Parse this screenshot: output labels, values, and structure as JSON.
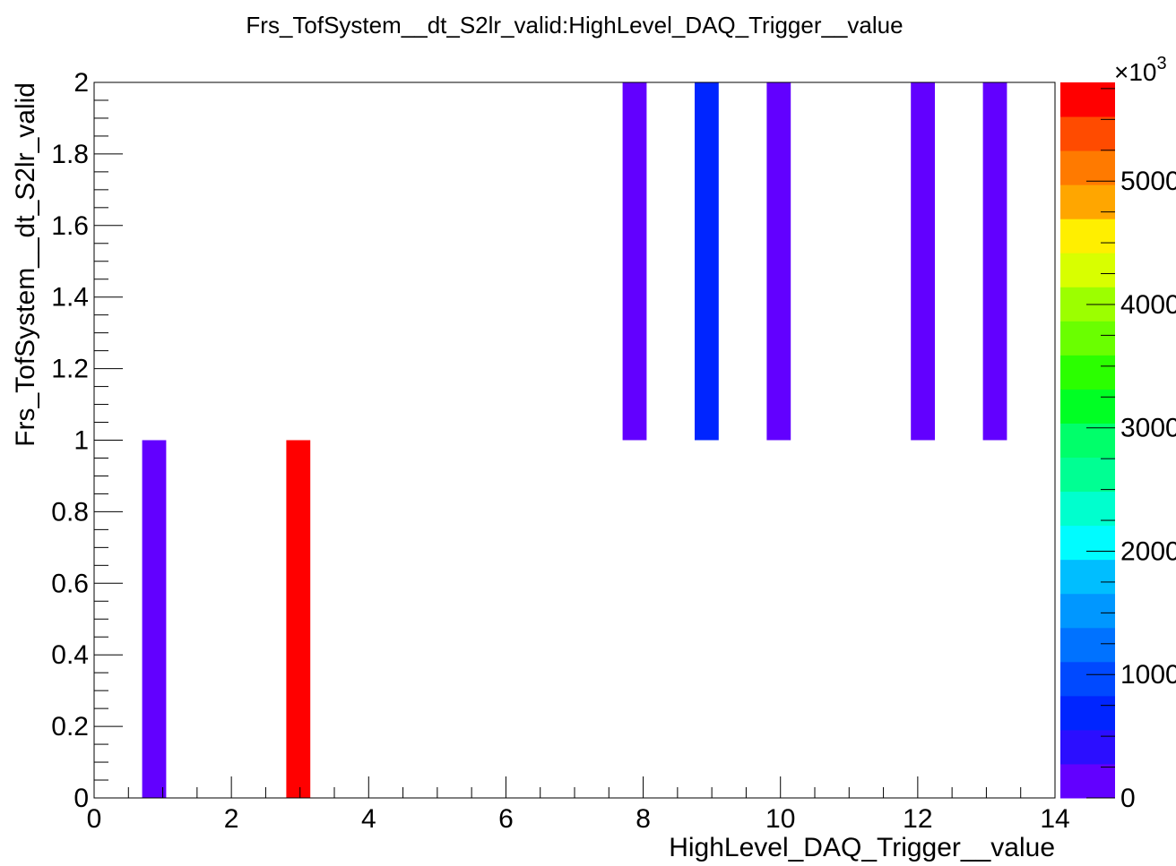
{
  "chart_data": {
    "type": "heatmap",
    "title": "Frs_TofSystem__dt_S2lr_valid:HighLevel_DAQ_Trigger__value",
    "xlabel": "HighLevel_DAQ_Trigger__value",
    "ylabel": "Frs_TofSystem__dt_S2lr_valid",
    "xlim": [
      0,
      14
    ],
    "ylim": [
      0,
      2
    ],
    "x_ticks": [
      "0",
      "2",
      "4",
      "6",
      "8",
      "10",
      "12",
      "14"
    ],
    "y_ticks": [
      "0",
      "0.2",
      "0.4",
      "0.6",
      "0.8",
      "1",
      "1.2",
      "1.4",
      "1.6",
      "1.8",
      "2"
    ],
    "cells": [
      {
        "x": [
          0.7,
          1.05
        ],
        "y": [
          0,
          1
        ],
        "z": 50
      },
      {
        "x": [
          2.8,
          3.15
        ],
        "y": [
          0,
          1
        ],
        "z": 5800
      },
      {
        "x": [
          7.7,
          8.05
        ],
        "y": [
          1,
          2
        ],
        "z": 50
      },
      {
        "x": [
          8.75,
          9.1
        ],
        "y": [
          1,
          2
        ],
        "z": 700
      },
      {
        "x": [
          9.8,
          10.15
        ],
        "y": [
          1,
          2
        ],
        "z": 50
      },
      {
        "x": [
          11.9,
          12.25
        ],
        "y": [
          1,
          2
        ],
        "z": 50
      },
      {
        "x": [
          12.95,
          13.3
        ],
        "y": [
          1,
          2
        ],
        "z": 50
      }
    ],
    "colorbar": {
      "zlim": [
        0,
        5800
      ],
      "multiplier_label": "×10",
      "multiplier_exponent": "3",
      "tick_labels": [
        "0",
        "1000",
        "2000",
        "3000",
        "4000",
        "5000"
      ],
      "tick_values": [
        0,
        1000,
        2000,
        3000,
        4000,
        5000
      ],
      "palette": [
        "#6200ff",
        "#2b0eff",
        "#0025ff",
        "#0049ff",
        "#0072ff",
        "#0097ff",
        "#00beff",
        "#00fcff",
        "#00ffce",
        "#00ff93",
        "#00ff6a",
        "#00ff24",
        "#2bff00",
        "#6aff00",
        "#9cff00",
        "#d8ff00",
        "#ffef00",
        "#ffa600",
        "#ff7a00",
        "#ff4b00",
        "#ff0000"
      ]
    },
    "grid": false,
    "legend": "none"
  }
}
